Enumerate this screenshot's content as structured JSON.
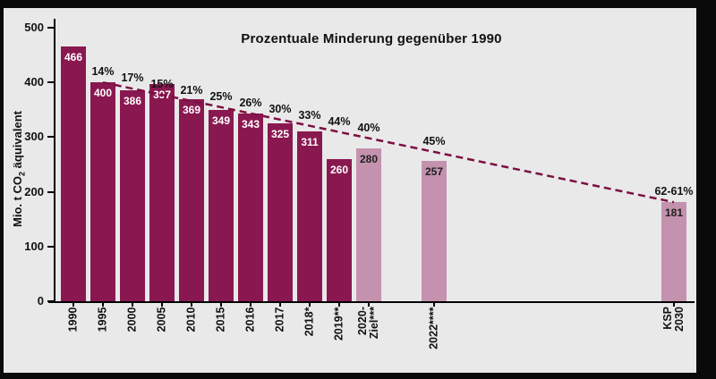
{
  "title": "Prozentuale Minderung gegenüber 1990",
  "y_axis": {
    "label_prefix": "Mio. t CO",
    "label_sub": "2",
    "label_suffix": " äquivalent"
  },
  "colors": {
    "dark_bar": "#8a1850",
    "light_bar": "#c492ae",
    "line": "#7c0f42",
    "plot_background": "#e9e9e9",
    "frame": "#000000",
    "text": "#111111",
    "value_label_on_dark": "#ffffff",
    "value_label_on_light": "#1f1f1f"
  },
  "chart_data": {
    "type": "bar",
    "title": "Prozentuale Minderung gegenüber 1990",
    "ylabel": "Mio. t CO2 äquivalent",
    "xlabel": "",
    "ylim": [
      0,
      500
    ],
    "yticks": [
      0,
      100,
      200,
      300,
      400,
      500
    ],
    "grid": false,
    "legend": null,
    "bars": [
      {
        "label": "1990",
        "value": 466,
        "pct": null,
        "style": "dark"
      },
      {
        "label": "1995",
        "value": 400,
        "pct": "14%",
        "style": "dark"
      },
      {
        "label": "2000",
        "value": 386,
        "pct": "17%",
        "style": "dark"
      },
      {
        "label": "2005",
        "value": 397,
        "pct": "15%",
        "style": "dark"
      },
      {
        "label": "2010",
        "value": 369,
        "pct": "21%",
        "style": "dark"
      },
      {
        "label": "2015",
        "value": 349,
        "pct": "25%",
        "style": "dark"
      },
      {
        "label": "2016",
        "value": 343,
        "pct": "26%",
        "style": "dark"
      },
      {
        "label": "2017",
        "value": 325,
        "pct": "30%",
        "style": "dark"
      },
      {
        "label": "2018*",
        "value": 311,
        "pct": "33%",
        "style": "dark"
      },
      {
        "label": "2019**",
        "value": 260,
        "pct": "44%",
        "style": "dark"
      },
      {
        "label": "2020-\nZiel***",
        "value": 280,
        "pct": "40%",
        "style": "light"
      },
      {
        "label": "2022****",
        "value": 257,
        "pct": "45%",
        "style": "light",
        "gap_before": 40
      },
      {
        "label": "KSP\n2030",
        "value": 181,
        "pct": "62-61%",
        "style": "light",
        "gap_before": 235
      }
    ],
    "trend_line": {
      "style": "dashed",
      "from_index": 1,
      "from_value": 400,
      "to_index": 12,
      "to_value": 181
    }
  }
}
